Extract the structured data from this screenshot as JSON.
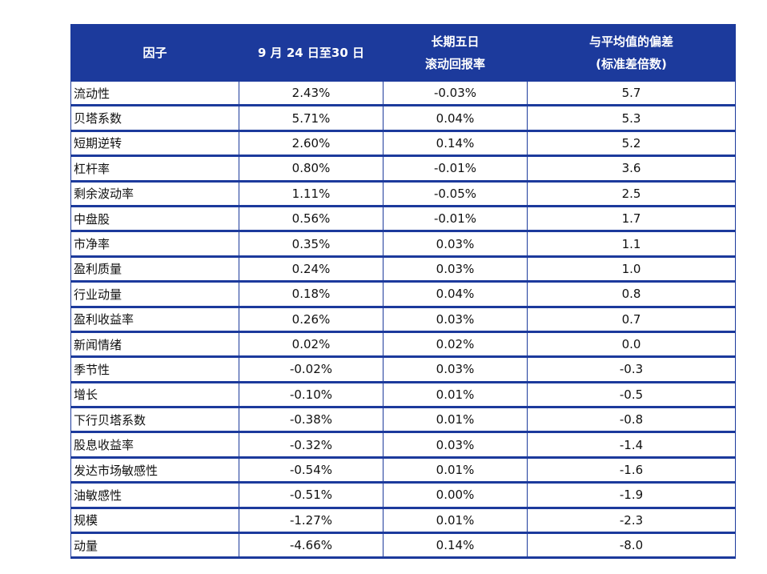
{
  "table": {
    "header": [
      [
        "因子"
      ],
      [
        "9 月 24 日至30 日"
      ],
      [
        "长期五日",
        "滚动回报率"
      ],
      [
        "与平均值的偏差",
        "(标准差倍数)"
      ]
    ],
    "rows": [
      [
        "流动性",
        "2.43%",
        "-0.03%",
        "5.7"
      ],
      [
        "贝塔系数",
        "5.71%",
        "0.04%",
        "5.3"
      ],
      [
        "短期逆转",
        "2.60%",
        "0.14%",
        "5.2"
      ],
      [
        "杠杆率",
        "0.80%",
        "-0.01%",
        "3.6"
      ],
      [
        "剩余波动率",
        "1.11%",
        "-0.05%",
        "2.5"
      ],
      [
        "中盘股",
        "0.56%",
        "-0.01%",
        "1.7"
      ],
      [
        "市净率",
        "0.35%",
        "0.03%",
        "1.1"
      ],
      [
        "盈利质量",
        "0.24%",
        "0.03%",
        "1.0"
      ],
      [
        "行业动量",
        "0.18%",
        "0.04%",
        "0.8"
      ],
      [
        "盈利收益率",
        "0.26%",
        "0.03%",
        "0.7"
      ],
      [
        "新闻情绪",
        "0.02%",
        "0.02%",
        "0.0"
      ],
      [
        "季节性",
        "-0.02%",
        "0.03%",
        "-0.3"
      ],
      [
        "增长",
        "-0.10%",
        "0.01%",
        "-0.5"
      ],
      [
        "下行贝塔系数",
        "-0.38%",
        "0.01%",
        "-0.8"
      ],
      [
        "股息收益率",
        "-0.32%",
        "0.03%",
        "-1.4"
      ],
      [
        "发达市场敏感性",
        "-0.54%",
        "0.01%",
        "-1.6"
      ],
      [
        "油敏感性",
        "-0.51%",
        "0.00%",
        "-1.9"
      ],
      [
        "规模",
        "-1.27%",
        "0.01%",
        "-2.3"
      ],
      [
        "动量",
        "-4.66%",
        "0.14%",
        "-8.0"
      ]
    ]
  }
}
